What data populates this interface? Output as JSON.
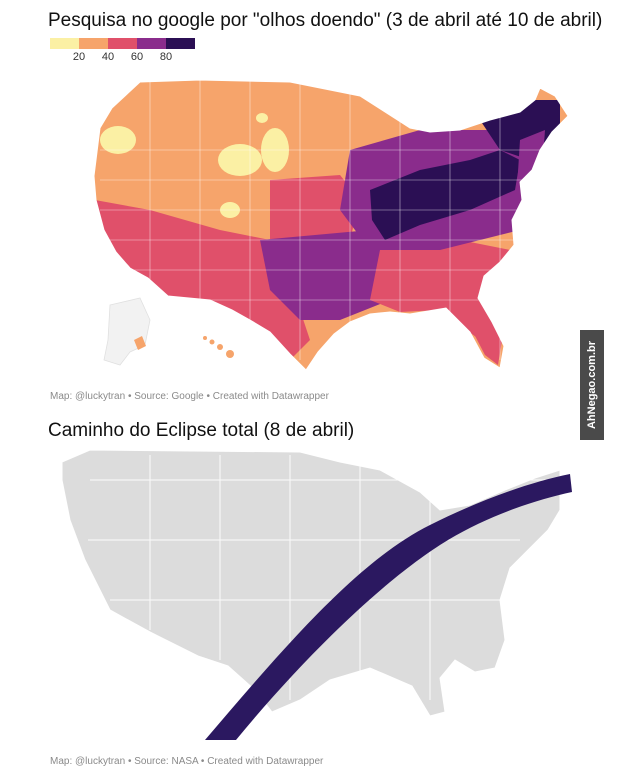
{
  "map1": {
    "title": "Pesquisa no google por \"olhos doendo\" (3 de abril até 10 de abril)",
    "legend": {
      "colors": [
        "#fbf0a4",
        "#f6a46b",
        "#e0506a",
        "#8a2c8c",
        "#2b0f54"
      ],
      "ticks": [
        "20",
        "40",
        "60",
        "80"
      ]
    },
    "credit": "Map: @luckytran • Source: Google • Created with Datawrapper"
  },
  "map2": {
    "title": "Caminho do Eclipse total (8 de abril)",
    "path_color": "#2b1860",
    "land_color": "#dcdcdc",
    "credit": "Map: @luckytran • Source: NASA • Created with Datawrapper"
  },
  "watermark": "AhNegao.com.br"
}
